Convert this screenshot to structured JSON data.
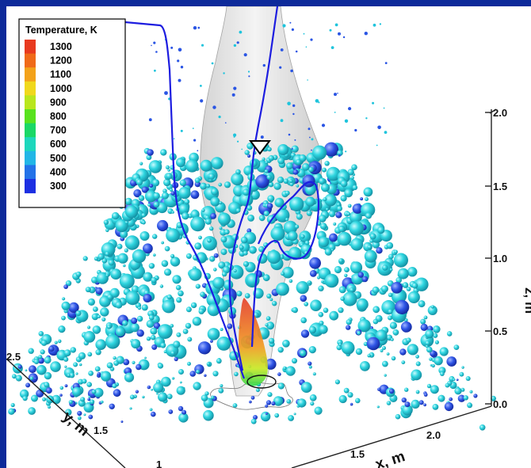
{
  "chart_data": {
    "type": "scatter",
    "subtype": "3d-particle-temperature",
    "colorbar": {
      "title": "Temperature, K",
      "ticks": [
        1300,
        1200,
        1100,
        1000,
        900,
        800,
        700,
        600,
        500,
        400,
        300
      ],
      "colors": [
        "#e83a1f",
        "#f06a19",
        "#f3a21a",
        "#f0d81c",
        "#b9e61d",
        "#58e21e",
        "#1ad866",
        "#1dd7bc",
        "#22b6e6",
        "#2372e8",
        "#1c2fe2"
      ],
      "range": [
        300,
        1300
      ]
    },
    "axes": {
      "x": {
        "label": "x, m",
        "ticks": [
          "1",
          "1.5",
          "2.0"
        ]
      },
      "y": {
        "label": "y, m",
        "ticks": [
          "2.5",
          "1.5"
        ]
      },
      "z": {
        "label": "z, m",
        "ticks": [
          "2.0",
          "1.5",
          "1.0",
          "0.5",
          "0.0"
        ],
        "range": [
          0,
          2.0
        ]
      }
    },
    "colors": {
      "background_border": "#0d2a9a",
      "particle": "#1fd3dc",
      "particle_cool": "#2a4fe0",
      "contour_line": "#1d1de0",
      "plume_surface": "#e6e6e6"
    },
    "marker": "triangle-down"
  }
}
